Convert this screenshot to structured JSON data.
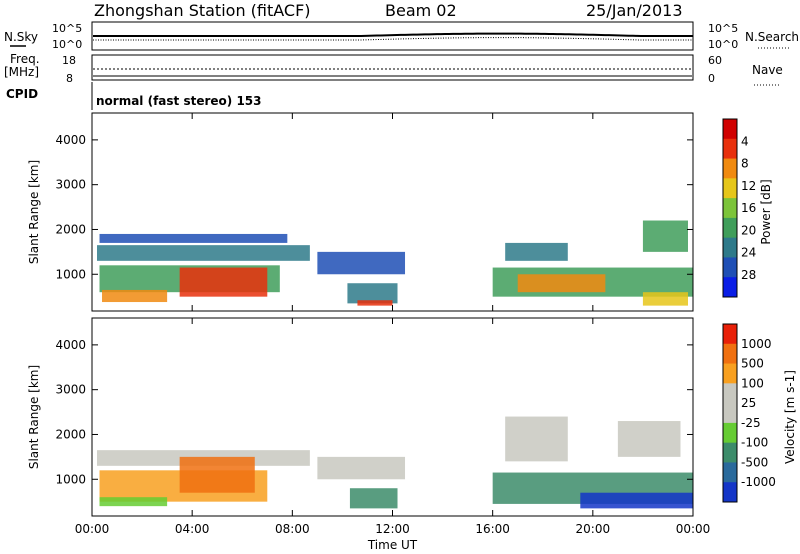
{
  "header": {
    "station_title": "Zhongshan Station (fitACF)",
    "beam": "Beam 02",
    "date": "25/Jan/2013"
  },
  "strips": {
    "nsky_label": "N.Sky",
    "nsky_ticks": [
      "10^5",
      "10^0"
    ],
    "nsearch_ticks": [
      "10^5",
      "10^0"
    ],
    "nsearch_label": "N.Search",
    "freq_label_line1": "Freq.",
    "freq_label_line2": "[MHz]",
    "freq_ticks": [
      "18",
      "8"
    ],
    "nave_ticks": [
      "60",
      "0"
    ],
    "nave_label": "Nave",
    "cpid_label": "CPID",
    "cpid_text": "normal (fast stereo) 153"
  },
  "chart_data": [
    {
      "type": "heatmap",
      "name": "power",
      "ylabel": "Slant Range [km]",
      "xlabel": "",
      "xlim_hours": [
        0,
        24
      ],
      "ylim": [
        180,
        4600
      ],
      "y_ticks": [
        "1000",
        "2000",
        "3000",
        "4000"
      ],
      "y_tick_values": [
        1000,
        2000,
        3000,
        4000
      ],
      "colorbar": {
        "label": "Power [dB]",
        "ticks": [
          "4",
          "8",
          "12",
          "16",
          "20",
          "24",
          "28"
        ],
        "colors": [
          "#0a1ee6",
          "#1f4fb5",
          "#2e7a8a",
          "#3f9e5a",
          "#7cc43a",
          "#e6c61a",
          "#f08a10",
          "#e8300c",
          "#d00000"
        ]
      },
      "regions": [
        {
          "t0": 0.2,
          "t1": 8.7,
          "r0": 1300,
          "r1": 1650,
          "color": "#2e7a8a"
        },
        {
          "t0": 0.3,
          "t1": 7.5,
          "r0": 600,
          "r1": 1200,
          "color": "#3f9e5a"
        },
        {
          "t0": 3.5,
          "t1": 7.0,
          "r0": 500,
          "r1": 1150,
          "color": "#e8300c"
        },
        {
          "t0": 0.4,
          "t1": 3.0,
          "r0": 380,
          "r1": 650,
          "color": "#f08a10"
        },
        {
          "t0": 0.3,
          "t1": 7.8,
          "r0": 1700,
          "r1": 1900,
          "color": "#1f4fb5"
        },
        {
          "t0": 10.2,
          "t1": 12.2,
          "r0": 350,
          "r1": 800,
          "color": "#2e7a8a"
        },
        {
          "t0": 10.6,
          "t1": 12.0,
          "r0": 300,
          "r1": 420,
          "color": "#e8300c"
        },
        {
          "t0": 9.0,
          "t1": 12.5,
          "r0": 1000,
          "r1": 1500,
          "color": "#1f4fb5"
        },
        {
          "t0": 16.0,
          "t1": 24.0,
          "r0": 500,
          "r1": 1150,
          "color": "#3f9e5a"
        },
        {
          "t0": 17.0,
          "t1": 20.5,
          "r0": 600,
          "r1": 1000,
          "color": "#f08a10"
        },
        {
          "t0": 16.5,
          "t1": 19.0,
          "r0": 1300,
          "r1": 1700,
          "color": "#2e7a8a"
        },
        {
          "t0": 22.0,
          "t1": 23.8,
          "r0": 1500,
          "r1": 2200,
          "color": "#3f9e5a"
        },
        {
          "t0": 22.0,
          "t1": 23.8,
          "r0": 300,
          "r1": 600,
          "color": "#e6c61a"
        }
      ]
    },
    {
      "type": "heatmap",
      "name": "velocity",
      "ylabel": "Slant Range [km]",
      "xlabel": "Time UT",
      "xlim_hours": [
        0,
        24
      ],
      "ylim": [
        180,
        4600
      ],
      "x_ticks": [
        "00:00",
        "04:00",
        "08:00",
        "12:00",
        "16:00",
        "20:00",
        "00:00"
      ],
      "x_tick_hours": [
        0,
        4,
        8,
        12,
        16,
        20,
        24
      ],
      "y_ticks": [
        "1000",
        "2000",
        "3000",
        "4000"
      ],
      "y_tick_values": [
        1000,
        2000,
        3000,
        4000
      ],
      "colorbar": {
        "label": "Velocity [m s-1]",
        "ticks": [
          "1000",
          "500",
          "100",
          "25",
          "-25",
          "-100",
          "-500",
          "-1000"
        ],
        "colors": [
          "#1436c8",
          "#2a6a9c",
          "#3c8c6a",
          "#66cc33",
          "#c8c8c0",
          "#c8c8c0",
          "#f8a020",
          "#f07010",
          "#e82008"
        ]
      },
      "regions": [
        {
          "t0": 0.2,
          "t1": 8.7,
          "r0": 1300,
          "r1": 1650,
          "color": "#c8c8c0"
        },
        {
          "t0": 0.3,
          "t1": 7.0,
          "r0": 500,
          "r1": 1200,
          "color": "#f8a020"
        },
        {
          "t0": 3.5,
          "t1": 6.5,
          "r0": 700,
          "r1": 1500,
          "color": "#f07010"
        },
        {
          "t0": 0.3,
          "t1": 3.0,
          "r0": 400,
          "r1": 600,
          "color": "#66cc33"
        },
        {
          "t0": 9.0,
          "t1": 12.5,
          "r0": 1000,
          "r1": 1500,
          "color": "#c8c8c0"
        },
        {
          "t0": 10.3,
          "t1": 12.2,
          "r0": 350,
          "r1": 800,
          "color": "#3c8c6a"
        },
        {
          "t0": 16.0,
          "t1": 24.0,
          "r0": 450,
          "r1": 1150,
          "color": "#3c8c6a"
        },
        {
          "t0": 19.5,
          "t1": 24.0,
          "r0": 350,
          "r1": 700,
          "color": "#1436c8"
        },
        {
          "t0": 16.5,
          "t1": 19.0,
          "r0": 1400,
          "r1": 2400,
          "color": "#c8c8c0"
        },
        {
          "t0": 21.0,
          "t1": 23.5,
          "r0": 1500,
          "r1": 2300,
          "color": "#c8c8c0"
        }
      ]
    }
  ]
}
